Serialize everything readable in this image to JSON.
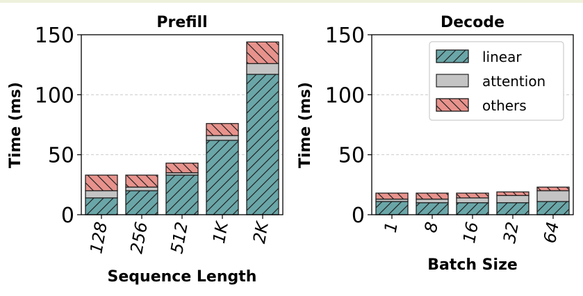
{
  "colors": {
    "linear": "#6aa6a8",
    "attention": "#c4c4c4",
    "others": "#e8928c",
    "edge": "#222222",
    "grid": "#cccccc"
  },
  "chart_data": [
    {
      "type": "bar",
      "stacked": true,
      "title": "Prefill",
      "xlabel": "Sequence Length",
      "ylabel": "Time (ms)",
      "ylim": [
        0,
        150
      ],
      "yticks": [
        "0",
        "50",
        "100",
        "150"
      ],
      "categories": [
        "128",
        "256",
        "512",
        "1K",
        "2K"
      ],
      "grid": "horizontal dashed",
      "series": [
        {
          "name": "linear",
          "values": [
            14,
            20,
            33,
            62,
            117
          ]
        },
        {
          "name": "attention",
          "values": [
            6,
            3,
            2,
            4,
            9
          ]
        },
        {
          "name": "others",
          "values": [
            13,
            10,
            8,
            10,
            18
          ]
        }
      ]
    },
    {
      "type": "bar",
      "stacked": true,
      "title": "Decode",
      "xlabel": "Batch Size",
      "ylabel": "Time (ms)",
      "ylim": [
        0,
        150
      ],
      "yticks": [
        "0",
        "50",
        "100",
        "150"
      ],
      "categories": [
        "1",
        "8",
        "16",
        "32",
        "64"
      ],
      "grid": "horizontal dashed",
      "legend": {
        "location": "top-right",
        "entries": [
          "linear",
          "attention",
          "others"
        ]
      },
      "series": [
        {
          "name": "linear",
          "values": [
            11,
            10,
            10,
            10,
            11
          ]
        },
        {
          "name": "attention",
          "values": [
            2,
            3,
            4,
            6,
            9
          ]
        },
        {
          "name": "others",
          "values": [
            5,
            5,
            4,
            3,
            3
          ]
        }
      ]
    }
  ]
}
